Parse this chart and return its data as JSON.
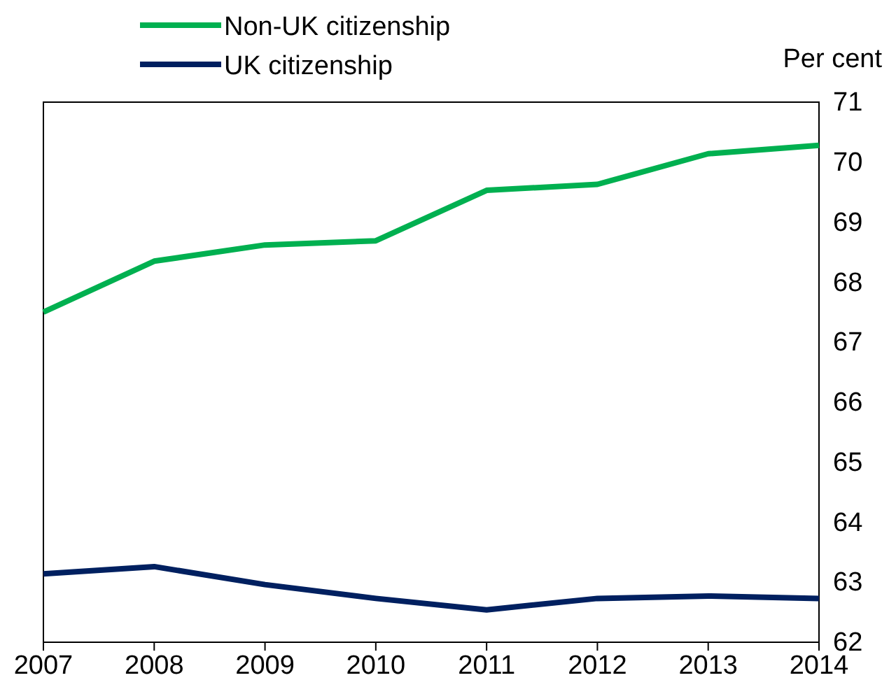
{
  "chart_data": {
    "type": "line",
    "ylabel": "Per cent",
    "x": [
      2007,
      2008,
      2009,
      2010,
      2011,
      2012,
      2013,
      2014
    ],
    "xlim": [
      2007,
      2014
    ],
    "xticks": [
      2007,
      2008,
      2009,
      2010,
      2011,
      2012,
      2013,
      2014
    ],
    "ylim": [
      62,
      71
    ],
    "yticks": [
      62,
      63,
      64,
      65,
      66,
      67,
      68,
      69,
      70,
      71
    ],
    "series": [
      {
        "name": "Non-UK citizenship",
        "color": "#00b050",
        "values": [
          67.5,
          68.35,
          68.62,
          68.69,
          69.53,
          69.63,
          70.14,
          70.28
        ]
      },
      {
        "name": "UK citizenship",
        "color": "#002060",
        "values": [
          63.14,
          63.26,
          62.96,
          62.73,
          62.54,
          62.73,
          62.77,
          62.73
        ]
      }
    ],
    "legend": "top left",
    "grid": false,
    "marker": "none",
    "line_style": "solid"
  }
}
